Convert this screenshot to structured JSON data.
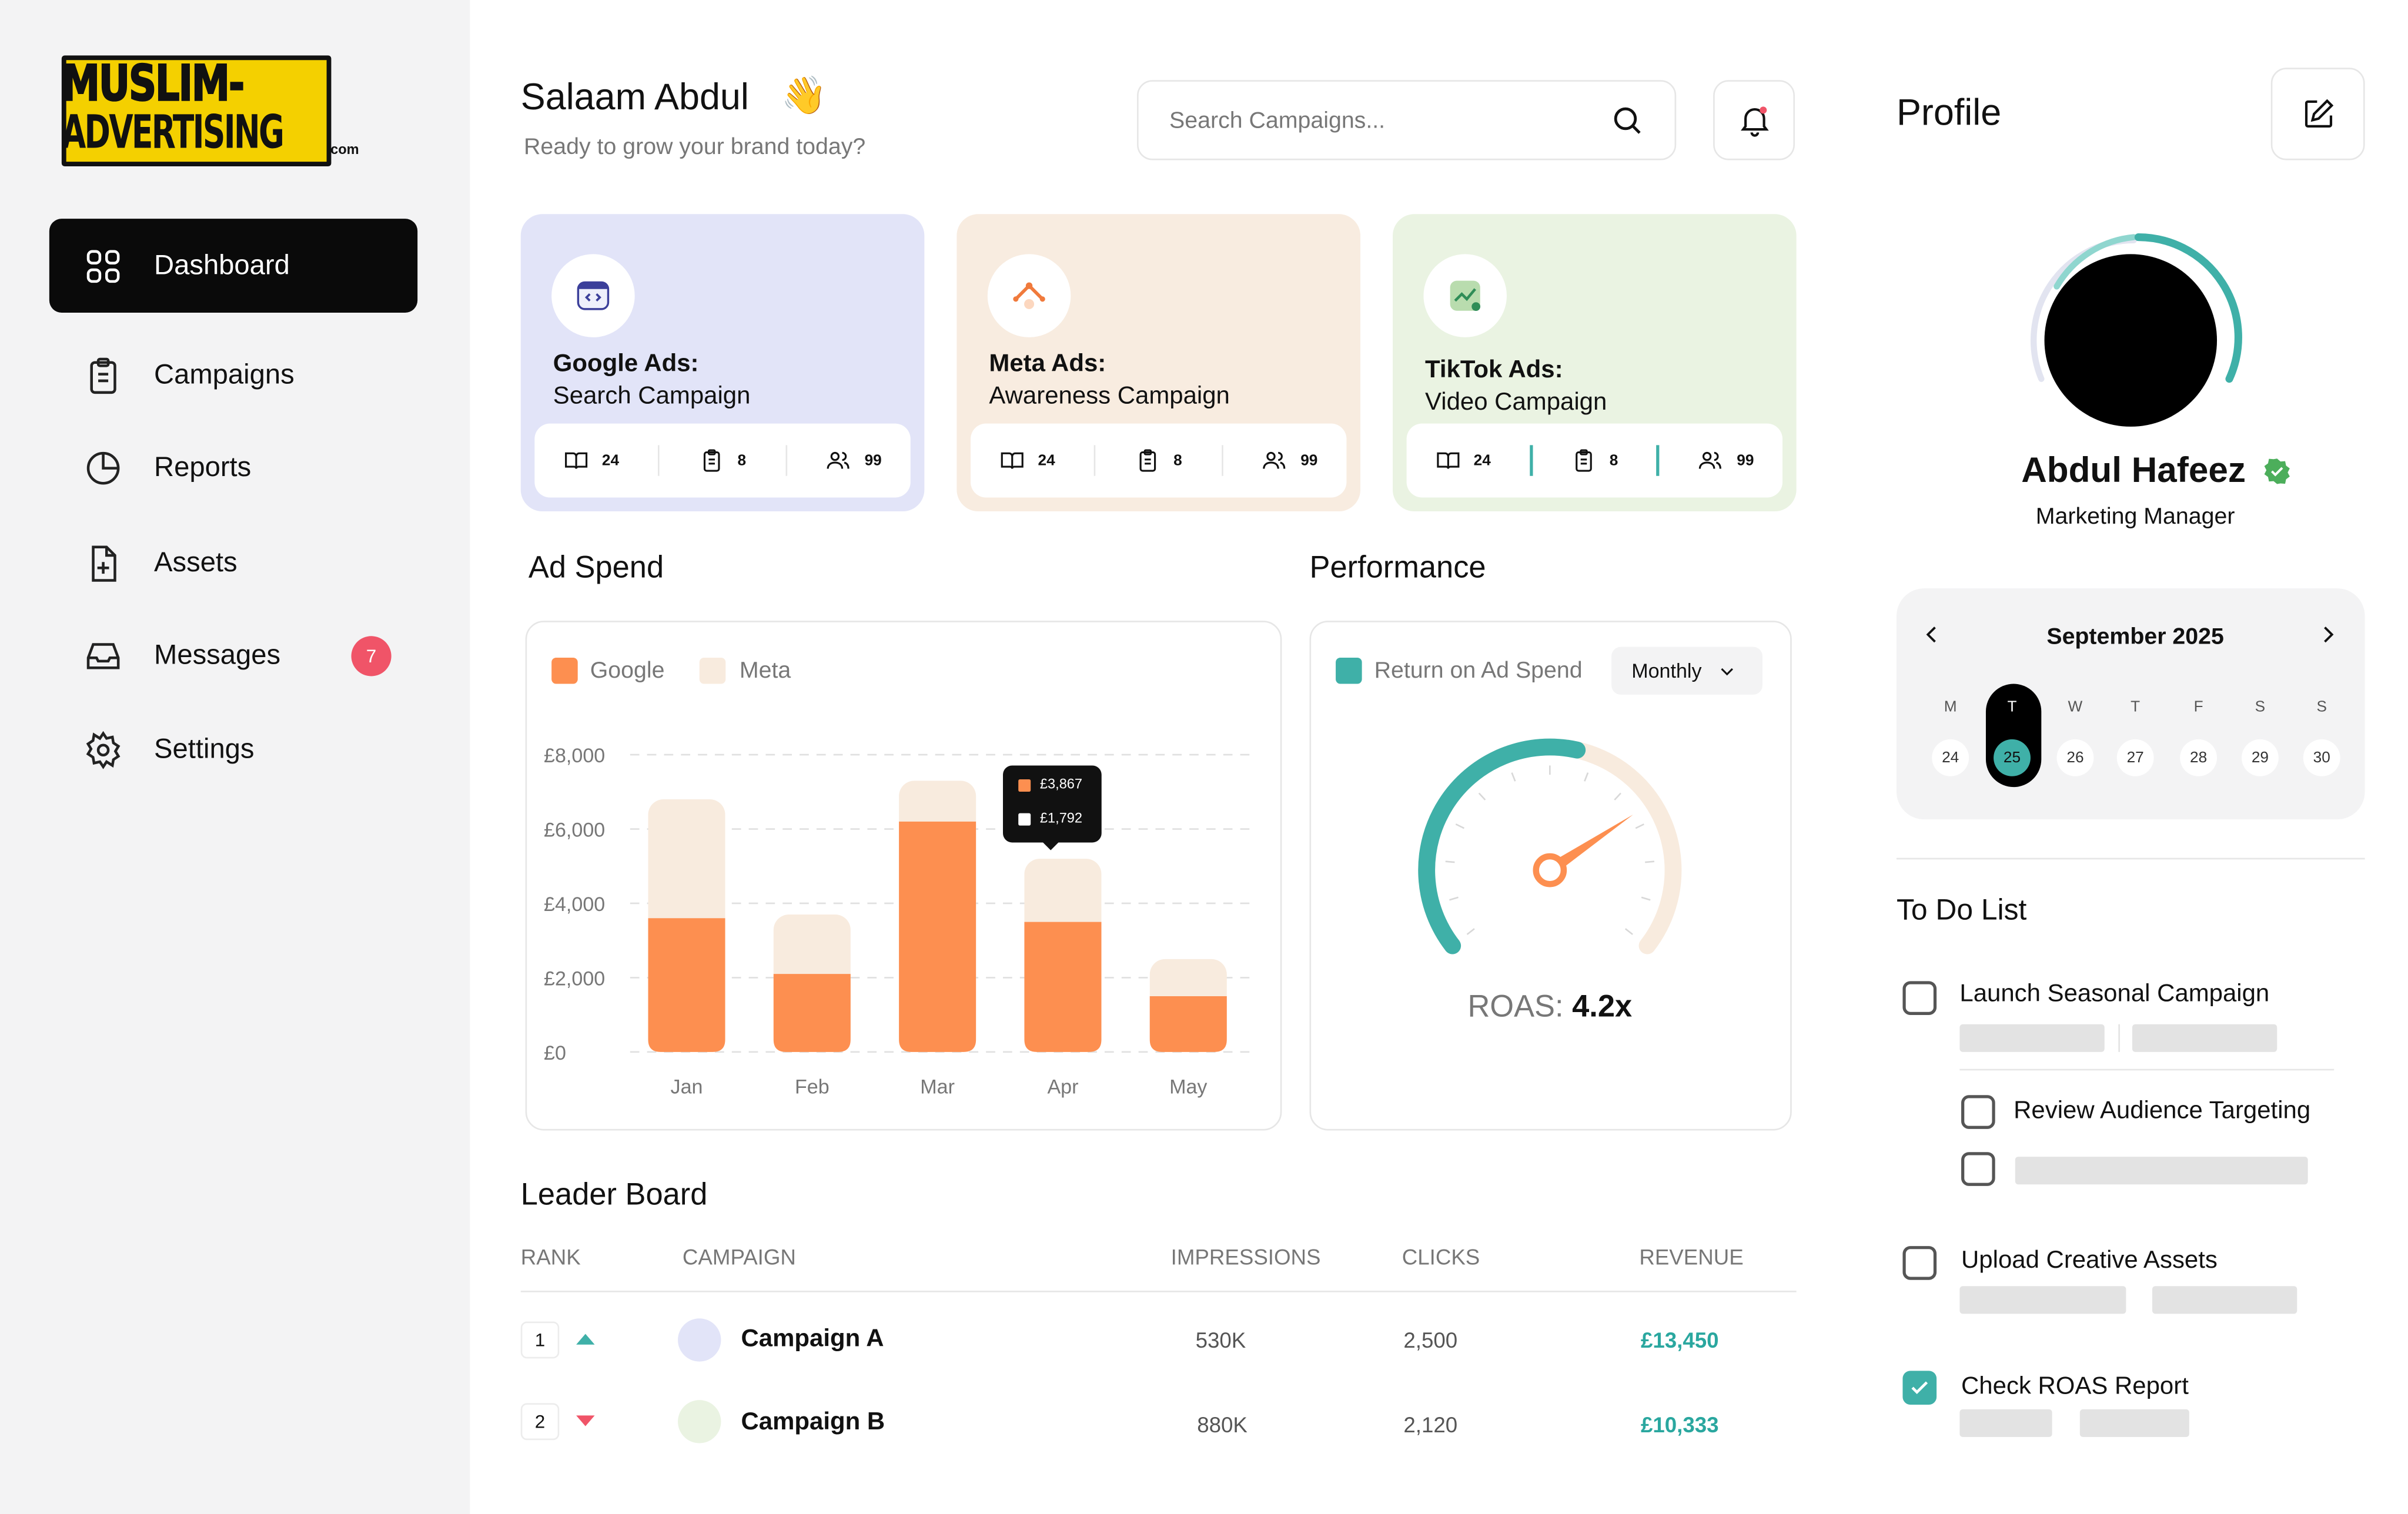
{
  "brand": {
    "line1": "MUSLIM-",
    "line2": "ADVERTISING",
    "suffix": ".com"
  },
  "nav": [
    {
      "label": "Dashboard",
      "icon": "grid-icon",
      "active": true
    },
    {
      "label": "Campaigns",
      "icon": "clipboard-icon"
    },
    {
      "label": "Reports",
      "icon": "pie-chart-icon"
    },
    {
      "label": "Assets",
      "icon": "file-plus-icon"
    },
    {
      "label": "Messages",
      "icon": "inbox-icon",
      "badge": "7"
    },
    {
      "label": "Settings",
      "icon": "gear-icon"
    }
  ],
  "header": {
    "greeting": "Salaam Abdul",
    "wave": "👋",
    "subtitle": "Ready to grow your brand today?",
    "search_placeholder": "Search Campaigns..."
  },
  "cards": [
    {
      "platform": "Google Ads:",
      "campaign": "Search Campaign",
      "books": "24",
      "tasks": "8",
      "users": "99",
      "bg": "#e2e4f8"
    },
    {
      "platform": "Meta Ads:",
      "campaign": "Awareness Campaign",
      "books": "24",
      "tasks": "8",
      "users": "99",
      "bg": "#f8ece0"
    },
    {
      "platform": "TikTok Ads:",
      "campaign": "Video Campaign",
      "books": "24",
      "tasks": "8",
      "users": "99",
      "bg": "#eaf3e2"
    }
  ],
  "ad_spend": {
    "title": "Ad Spend",
    "legend": [
      "Google",
      "Meta"
    ],
    "tooltip": {
      "google": "£3,867",
      "meta": "£1,792"
    }
  },
  "chart_data": {
    "type": "bar",
    "stacked": true,
    "categories": [
      "Jan",
      "Feb",
      "Mar",
      "Apr",
      "May"
    ],
    "series": [
      {
        "name": "Google",
        "values": [
          3600,
          2100,
          6200,
          3500,
          1500
        ],
        "color": "#fd8f50"
      },
      {
        "name": "Meta",
        "values": [
          3200,
          1600,
          1100,
          1700,
          1000
        ],
        "color": "#f8ebde"
      }
    ],
    "yticks": [
      "£8,000",
      "£6,000",
      "£4,000",
      "£2,000",
      "£0"
    ],
    "ylim": [
      0,
      8000
    ],
    "grid": true,
    "legend_position": "top-left"
  },
  "performance": {
    "title": "Performance",
    "legend": "Return on Ad Spend",
    "period": "Monthly",
    "roas_label": "ROAS:",
    "roas_value": "4.2x",
    "gauge_fraction": 0.55
  },
  "leaderboard": {
    "title": "Leader Board",
    "columns": [
      "RANK",
      "CAMPAIGN",
      "IMPRESSIONS",
      "CLICKS",
      "REVENUE"
    ],
    "rows": [
      {
        "rank": "1",
        "trend": "up",
        "campaign": "Campaign A",
        "impressions": "530K",
        "clicks": "2,500",
        "revenue": "£13,450",
        "dot": "#e2e4f8"
      },
      {
        "rank": "2",
        "trend": "down",
        "campaign": "Campaign B",
        "impressions": "880K",
        "clicks": "2,120",
        "revenue": "£10,333",
        "dot": "#eaf3e2"
      }
    ]
  },
  "profile": {
    "title": "Profile",
    "name": "Abdul Hafeez",
    "role": "Marketing Manager"
  },
  "calendar": {
    "month": "September 2025",
    "days": [
      {
        "h": "M",
        "d": "24"
      },
      {
        "h": "T",
        "d": "25",
        "selected": true
      },
      {
        "h": "W",
        "d": "26"
      },
      {
        "h": "T",
        "d": "27"
      },
      {
        "h": "F",
        "d": "28"
      },
      {
        "h": "S",
        "d": "29"
      },
      {
        "h": "S",
        "d": "30"
      }
    ]
  },
  "todo": {
    "title": "To Do List",
    "items": [
      {
        "label": "Launch Seasonal Campaign",
        "checked": false
      },
      {
        "label": "Review Audience Targeting",
        "checked": false
      },
      {
        "label": "Upload Creative Assets",
        "checked": false
      },
      {
        "label": "Check ROAS Report",
        "checked": true
      }
    ]
  }
}
